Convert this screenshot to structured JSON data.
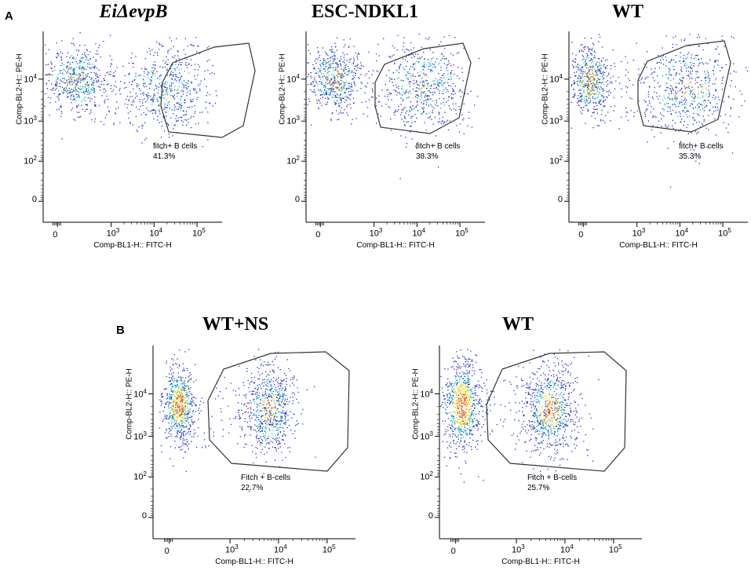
{
  "panels": {
    "a": {
      "letter": "A"
    },
    "b": {
      "letter": "B"
    }
  },
  "chart_data": [
    {
      "type": "scatter",
      "panel": "A",
      "title": "EiΔevpB",
      "xlabel": "Comp-BL1-H:: FITC-H",
      "ylabel": "Comp-BL2-H:: PE-H",
      "x_ticks": [
        "0",
        "10^3",
        "10^4",
        "10^5"
      ],
      "y_ticks": [
        "0",
        "10^2",
        "10^3",
        "10^4"
      ],
      "gate": {
        "name": "fitch+ B cells",
        "percent": "41.3%"
      }
    },
    {
      "type": "scatter",
      "panel": "A",
      "title": "ESC-NDKL1",
      "xlabel": "Comp-BL1-H:: FITC-H",
      "ylabel": "Comp-BL2-H:: PE-H",
      "x_ticks": [
        "0",
        "10^3",
        "10^4",
        "10^5"
      ],
      "y_ticks": [
        "0",
        "10^2",
        "10^3",
        "10^4"
      ],
      "gate": {
        "name": "fitch+ B cells",
        "percent": "38.3%"
      }
    },
    {
      "type": "scatter",
      "panel": "A",
      "title": "WT",
      "xlabel": "Comp-BL1-H:: FITC-H",
      "ylabel": "Comp-BL2-H:: PE-H",
      "x_ticks": [
        "0",
        "10^3",
        "10^4",
        "10^5"
      ],
      "y_ticks": [
        "0",
        "10^2",
        "10^3",
        "10^4"
      ],
      "gate": {
        "name": "fitch+ B cells",
        "percent": "35.3%"
      }
    },
    {
      "type": "scatter",
      "panel": "B",
      "title": "WT+NS",
      "xlabel": "Comp-BL1-H:: FITC-H",
      "ylabel": "Comp-BL2-H:: PE-H",
      "x_ticks": [
        "0",
        "10^3",
        "10^4",
        "10^5"
      ],
      "y_ticks": [
        "0",
        "10^2",
        "10^3",
        "10^4"
      ],
      "gate": {
        "name": "Fitch + B-cells",
        "percent": "22.7%"
      }
    },
    {
      "type": "scatter",
      "panel": "B",
      "title": "WT",
      "xlabel": "Comp-BL1-H:: FITC-H",
      "ylabel": "Comp-BL2-H:: PE-H",
      "x_ticks": [
        "0",
        "10^3",
        "10^4",
        "10^5"
      ],
      "y_ticks": [
        "0",
        "10^2",
        "10^3",
        "10^4"
      ],
      "gate": {
        "name": "Fitch + B-cells",
        "percent": "25.7%"
      }
    }
  ],
  "colors": {
    "dots_low": "#1f2fd0",
    "dots_mid": "#00c8c8",
    "dots_high": "#f0d000",
    "dots_peak": "#ff3000",
    "axis": "#000000",
    "gate": "#333333"
  }
}
